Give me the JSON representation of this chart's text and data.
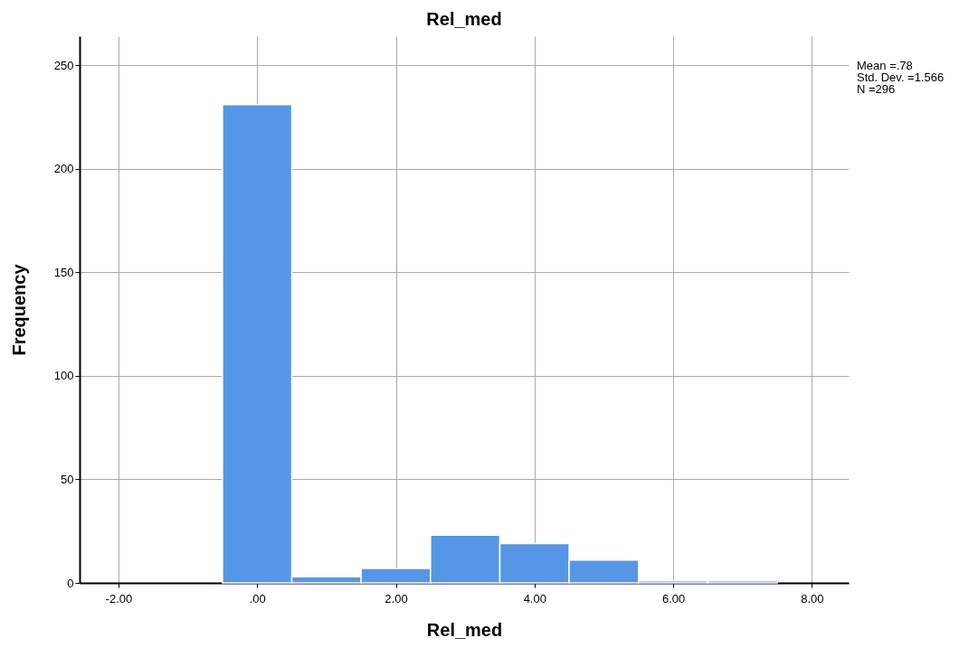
{
  "chart_data": {
    "type": "histogram",
    "title": "Rel_med",
    "xlabel": "Rel_med",
    "ylabel": "Frequency",
    "bins": [
      -0.5,
      0.5,
      1.5,
      2.5,
      3.5,
      4.5,
      5.5,
      6.5,
      7.5
    ],
    "values": [
      231,
      3,
      7,
      23,
      19,
      11,
      1,
      1
    ],
    "color": "#5596e6",
    "xlim": [
      -2.56,
      8.53
    ],
    "xticks": [
      {
        "value": -2,
        "label": "-2.00"
      },
      {
        "value": 0,
        "label": ".00"
      },
      {
        "value": 2,
        "label": "2.00"
      },
      {
        "value": 4,
        "label": "4.00"
      },
      {
        "value": 6,
        "label": "6.00"
      },
      {
        "value": 8,
        "label": "8.00"
      }
    ],
    "ylim": [
      0,
      264
    ],
    "yticks": [
      0,
      50,
      100,
      150,
      200,
      250
    ],
    "grid": true,
    "annotations": [
      "Mean =.78",
      "Std. Dev. =1.566",
      "N =296"
    ]
  }
}
